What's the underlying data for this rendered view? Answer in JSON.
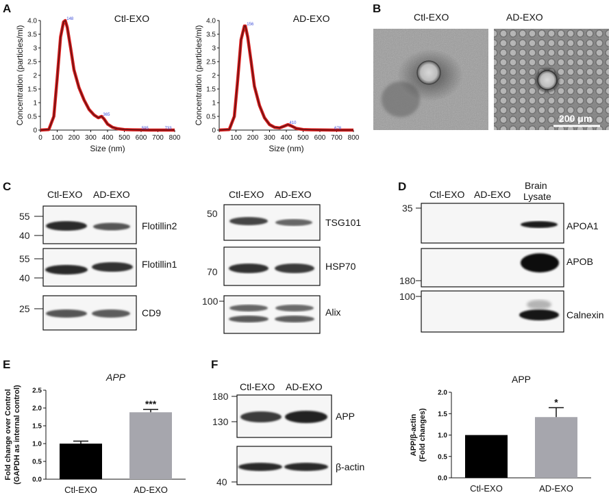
{
  "panels": {
    "A": "A",
    "B": "B",
    "C": "C",
    "D": "D",
    "E": "E",
    "F": "F"
  },
  "colors": {
    "nta_curve": "#d11a1a",
    "bar_ctl": "#000000",
    "bar_ad": "#a6a6ad",
    "peak_label": "#3b4bd8"
  },
  "tem": {
    "ctl_label": "Ctl-EXO",
    "ad_label": "AD-EXO",
    "scale_bar_label": "200 μm"
  },
  "blot_c": {
    "left_lanes": [
      "Ctl-EXO",
      "AD-EXO"
    ],
    "right_lanes": [
      "Ctl-EXO",
      "AD-EXO"
    ],
    "left_blots": [
      {
        "name": "Flotillin2",
        "mw": [
          "55",
          "40"
        ]
      },
      {
        "name": "Flotillin1",
        "mw": [
          "55",
          "40"
        ]
      },
      {
        "name": "CD9",
        "mw": [
          "25"
        ]
      }
    ],
    "right_blots": [
      {
        "name": "TSG101",
        "mw": [
          "50"
        ]
      },
      {
        "name": "HSP70",
        "mw": [
          "70"
        ]
      },
      {
        "name": "Alix",
        "mw": [
          "100"
        ]
      }
    ]
  },
  "blot_d": {
    "lanes": [
      "Ctl-EXO",
      "AD-EXO",
      "Brain",
      "Lysate"
    ],
    "blots": [
      {
        "name": "APOA1",
        "mw": "35"
      },
      {
        "name": "APOB",
        "mw": "180"
      },
      {
        "name": "Calnexin",
        "mw": "100"
      }
    ]
  },
  "blot_f": {
    "lanes": [
      "Ctl-EXO",
      "AD-EXO"
    ],
    "blots": [
      {
        "name": "APP",
        "mw": [
          "180",
          "130"
        ]
      },
      {
        "name": "β-actin",
        "mw": [
          "40"
        ]
      }
    ]
  },
  "chart_data": [
    {
      "type": "line",
      "panel": "A-left",
      "title": "Ctl-EXO",
      "xlabel": "Size (nm)",
      "ylabel": "Concentration (particles/ml)",
      "xlim": [
        0,
        800
      ],
      "ylim": [
        0,
        4.0
      ],
      "x_ticks": [
        "0",
        "100",
        "200",
        "300",
        "400",
        "500",
        "600",
        "700",
        "800"
      ],
      "y_ticks": [
        "0",
        "0.5",
        "1",
        "1.5",
        "2",
        "2.5",
        "3",
        "3.5",
        "4.0"
      ],
      "series": [
        {
          "x": [
            0,
            50,
            80,
            100,
            120,
            138,
            148,
            160,
            180,
            200,
            230,
            260,
            290,
            320,
            345,
            365,
            380,
            400,
            430,
            460,
            500,
            550,
            600,
            650,
            700,
            750,
            800
          ],
          "y": [
            0,
            0.02,
            0.5,
            1.9,
            3.4,
            3.95,
            4.0,
            3.75,
            3.0,
            2.2,
            1.55,
            1.1,
            0.75,
            0.55,
            0.45,
            0.5,
            0.4,
            0.22,
            0.1,
            0.05,
            0.02,
            0.01,
            0.005,
            0,
            0,
            0,
            0
          ]
        }
      ],
      "peak_labels": [
        {
          "x": 148,
          "y": 4.0,
          "text": "148"
        },
        {
          "x": 365,
          "y": 0.5,
          "text": "365"
        },
        {
          "x": 595,
          "y": 0.0,
          "text": "595"
        },
        {
          "x": 733,
          "y": 0.0,
          "text": "733"
        }
      ]
    },
    {
      "type": "line",
      "panel": "A-right",
      "title": "AD-EXO",
      "xlabel": "Size (nm)",
      "ylabel": "Concentration (particles/ml)",
      "xlim": [
        0,
        800
      ],
      "ylim": [
        0,
        4.0
      ],
      "x_ticks": [
        "0",
        "100",
        "200",
        "300",
        "400",
        "500",
        "600",
        "700",
        "800"
      ],
      "y_ticks": [
        "0",
        "0.5",
        "1",
        "1.5",
        "2",
        "2.5",
        "3",
        "3.5",
        "4.0"
      ],
      "series": [
        {
          "x": [
            0,
            60,
            90,
            110,
            130,
            150,
            156,
            170,
            190,
            210,
            240,
            270,
            300,
            330,
            360,
            390,
            410,
            430,
            460,
            500,
            550,
            600,
            678,
            750,
            800
          ],
          "y": [
            0,
            0.02,
            0.5,
            1.8,
            3.3,
            3.8,
            3.8,
            3.4,
            2.5,
            1.6,
            0.9,
            0.45,
            0.2,
            0.1,
            0.08,
            0.15,
            0.2,
            0.15,
            0.06,
            0.02,
            0.01,
            0.005,
            0,
            0,
            0
          ]
        }
      ],
      "peak_labels": [
        {
          "x": 156,
          "y": 3.8,
          "text": "156"
        },
        {
          "x": 410,
          "y": 0.2,
          "text": "410"
        },
        {
          "x": 678,
          "y": 0.0,
          "text": "678"
        }
      ]
    },
    {
      "type": "bar",
      "panel": "E",
      "title": "APP",
      "categories": [
        "Ctl-EXO",
        "AD-EXO"
      ],
      "values": [
        1.0,
        1.88
      ],
      "errors": [
        0.07,
        0.08
      ],
      "significance": [
        "",
        "***"
      ],
      "ylabel": [
        "Fold change over Control",
        "(GAPDH as internal control)"
      ],
      "ylim": [
        0,
        2.5
      ],
      "y_ticks": [
        "0.0",
        "0.5",
        "1.0",
        "1.5",
        "2.0",
        "2.5"
      ]
    },
    {
      "type": "bar",
      "panel": "F",
      "title": "APP",
      "categories": [
        "Ctl-EXO",
        "AD-EXO"
      ],
      "values": [
        1.0,
        1.42
      ],
      "errors": [
        0.0,
        0.22
      ],
      "significance": [
        "",
        "*"
      ],
      "ylabel": [
        "APP/β-actin",
        "(Fold changes)"
      ],
      "ylim": [
        0,
        2.0
      ],
      "y_ticks": [
        "0.0",
        "0.5",
        "1.0",
        "1.5",
        "2.0"
      ]
    }
  ]
}
